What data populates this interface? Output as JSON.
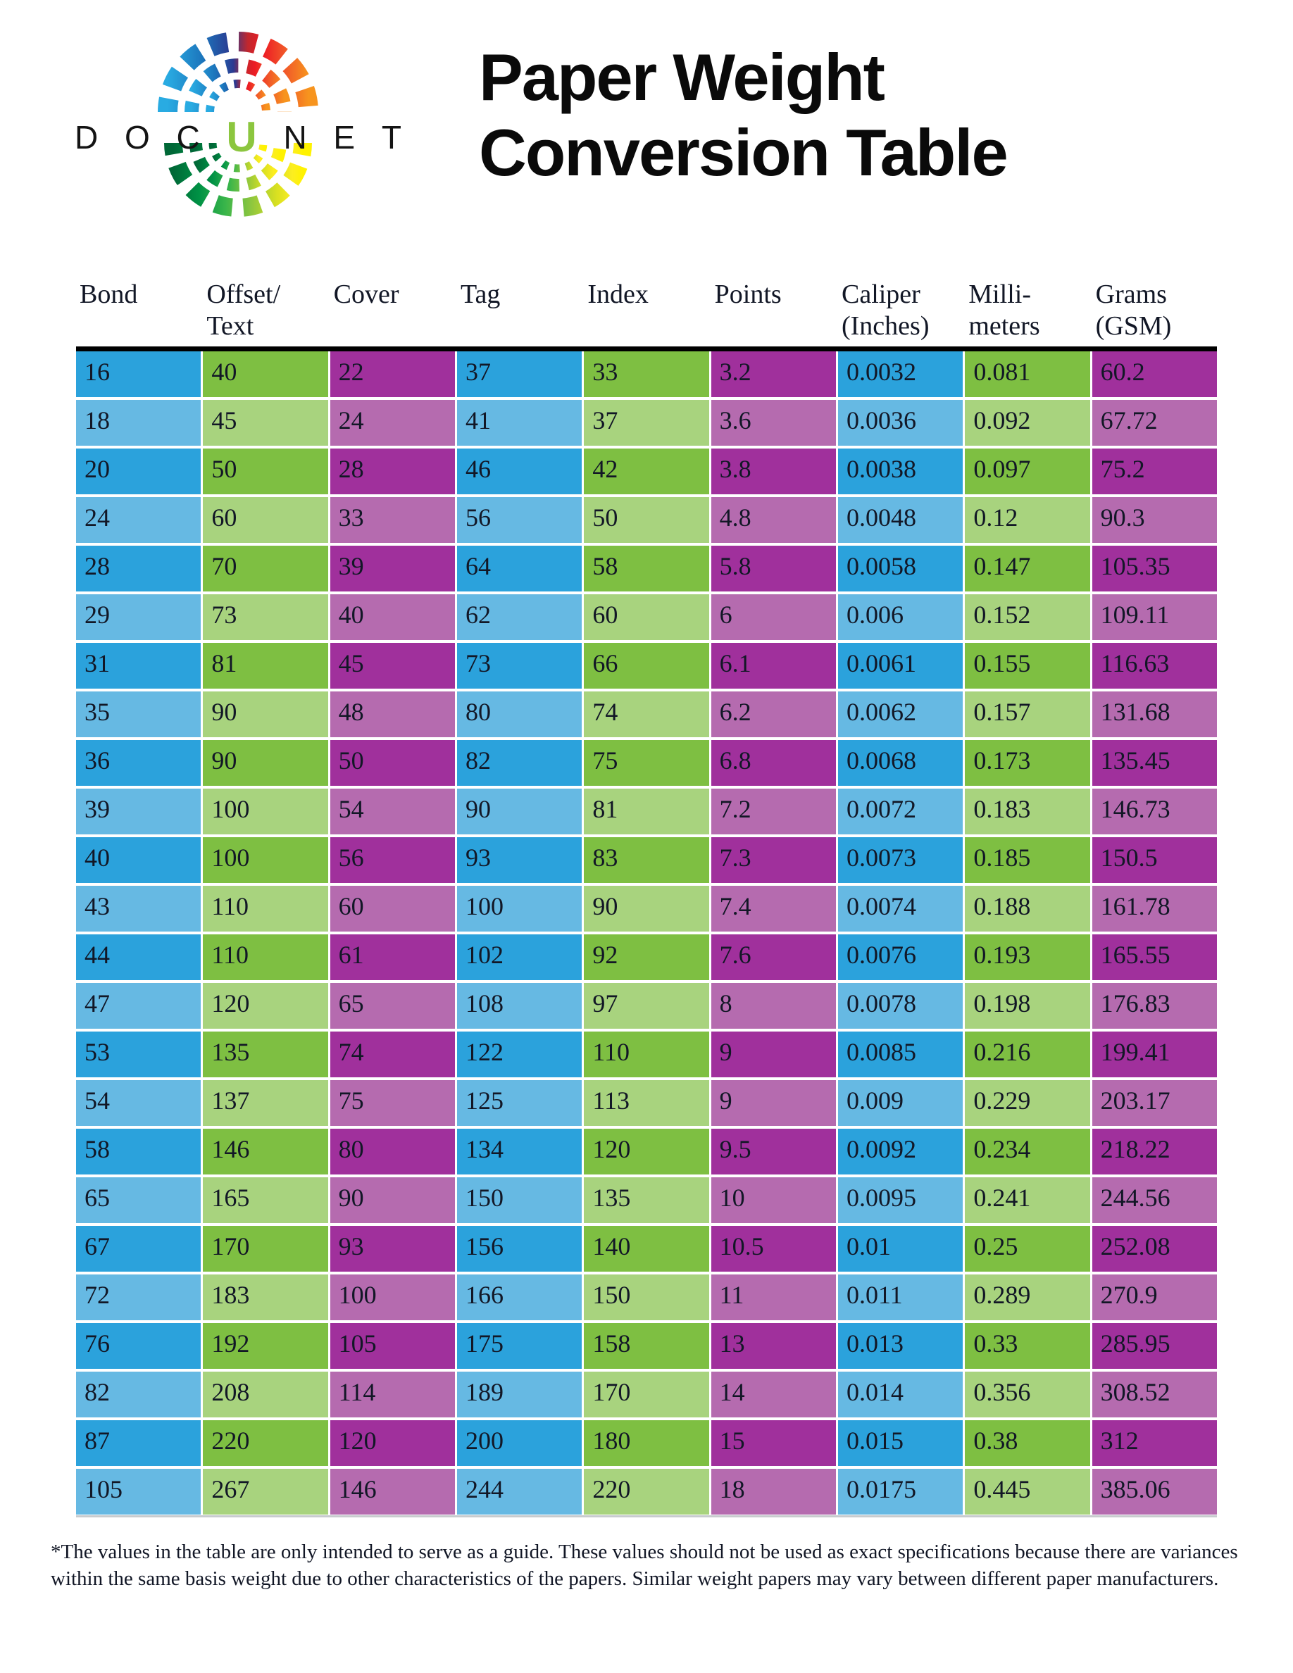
{
  "logo": {
    "letters": [
      "D",
      "O",
      "C",
      "U",
      "N",
      "E",
      "T"
    ],
    "accent_letter": "U",
    "accent_color": "#8CC63F",
    "top_palette": [
      "#29ABE2",
      "#1C75BC",
      "#2B3990",
      "#C1272D",
      "#ED1C24",
      "#F15A29",
      "#F7941E"
    ],
    "bottom_palette": [
      "#006837",
      "#009245",
      "#39B54A",
      "#8DC63F",
      "#D9E021",
      "#FCEE21",
      "#FFF200"
    ]
  },
  "title": {
    "line1": "Paper Weight",
    "line2": "Conversion Table"
  },
  "table": {
    "headers": [
      "Bond",
      "Offset/\nText",
      "Cover",
      "Tag",
      "Index",
      "Points",
      "Caliper\n(Inches)",
      "Milli-\nmeters",
      "Grams\n(GSM)"
    ],
    "rows": [
      [
        "16",
        "40",
        "22",
        "37",
        "33",
        "3.2",
        "0.0032",
        "0.081",
        "60.2"
      ],
      [
        "18",
        "45",
        "24",
        "41",
        "37",
        "3.6",
        "0.0036",
        "0.092",
        "67.72"
      ],
      [
        "20",
        "50",
        "28",
        "46",
        "42",
        "3.8",
        "0.0038",
        "0.097",
        "75.2"
      ],
      [
        "24",
        "60",
        "33",
        "56",
        "50",
        "4.8",
        "0.0048",
        "0.12",
        "90.3"
      ],
      [
        "28",
        "70",
        "39",
        "64",
        "58",
        "5.8",
        "0.0058",
        "0.147",
        "105.35"
      ],
      [
        "29",
        "73",
        "40",
        "62",
        "60",
        "6",
        "0.006",
        "0.152",
        "109.11"
      ],
      [
        "31",
        "81",
        "45",
        "73",
        "66",
        "6.1",
        "0.0061",
        "0.155",
        "116.63"
      ],
      [
        "35",
        "90",
        "48",
        "80",
        "74",
        "6.2",
        "0.0062",
        "0.157",
        "131.68"
      ],
      [
        "36",
        "90",
        "50",
        "82",
        "75",
        "6.8",
        "0.0068",
        "0.173",
        "135.45"
      ],
      [
        "39",
        "100",
        "54",
        "90",
        "81",
        "7.2",
        "0.0072",
        "0.183",
        "146.73"
      ],
      [
        "40",
        "100",
        "56",
        "93",
        "83",
        "7.3",
        "0.0073",
        "0.185",
        "150.5"
      ],
      [
        "43",
        "110",
        "60",
        "100",
        "90",
        "7.4",
        "0.0074",
        "0.188",
        "161.78"
      ],
      [
        "44",
        "110",
        "61",
        "102",
        "92",
        "7.6",
        "0.0076",
        "0.193",
        "165.55"
      ],
      [
        "47",
        "120",
        "65",
        "108",
        "97",
        "8",
        "0.0078",
        "0.198",
        "176.83"
      ],
      [
        "53",
        "135",
        "74",
        "122",
        "110",
        "9",
        "0.0085",
        "0.216",
        "199.41"
      ],
      [
        "54",
        "137",
        "75",
        "125",
        "113",
        "9",
        "0.009",
        "0.229",
        "203.17"
      ],
      [
        "58",
        "146",
        "80",
        "134",
        "120",
        "9.5",
        "0.0092",
        "0.234",
        "218.22"
      ],
      [
        "65",
        "165",
        "90",
        "150",
        "135",
        "10",
        "0.0095",
        "0.241",
        "244.56"
      ],
      [
        "67",
        "170",
        "93",
        "156",
        "140",
        "10.5",
        "0.01",
        "0.25",
        "252.08"
      ],
      [
        "72",
        "183",
        "100",
        "166",
        "150",
        "11",
        "0.011",
        "0.289",
        "270.9"
      ],
      [
        "76",
        "192",
        "105",
        "175",
        "158",
        "13",
        "0.013",
        "0.33",
        "285.95"
      ],
      [
        "82",
        "208",
        "114",
        "189",
        "170",
        "14",
        "0.014",
        "0.356",
        "308.52"
      ],
      [
        "87",
        "220",
        "120",
        "200",
        "180",
        "15",
        "0.015",
        "0.38",
        "312"
      ],
      [
        "105",
        "267",
        "146",
        "244",
        "220",
        "18",
        "0.0175",
        "0.445",
        "385.06"
      ]
    ]
  },
  "footnote": "*The values in the table are only intended to serve as a guide. These values should not be used as exact specifications because there are variances within the same basis weight due to other characteristics of the papers. Similar weight papers may vary between different paper manufacturers.",
  "colors": {
    "blue_dark": "#2BA2DC",
    "blue_light": "#66B9E3",
    "green_dark": "#7EBF42",
    "green_light": "#A8D37E",
    "purple_dark": "#A0309C",
    "purple_light": "#B56BAF",
    "text": "#121726",
    "logo_accent": "#8CC63F"
  }
}
